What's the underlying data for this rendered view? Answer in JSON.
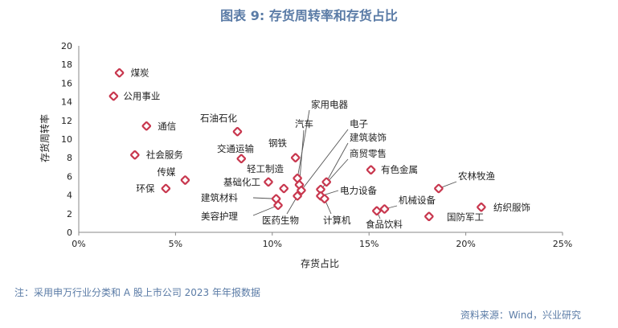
{
  "title": "图表 9:  存货周转率和存货占比",
  "note": "注：采用申万行业分类和 A 股上市公司 2023 年年报数据",
  "source": "资料来源：Wind，兴业研究",
  "chart_data": {
    "type": "scatter",
    "xlabel": "存货占比",
    "ylabel": "存货周转率",
    "xlim": [
      0,
      25
    ],
    "ylim": [
      0,
      20
    ],
    "x_ticks": [
      "0%",
      "5%",
      "10%",
      "15%",
      "20%",
      "25%"
    ],
    "y_ticks": [
      "0",
      "2",
      "4",
      "6",
      "8",
      "10",
      "12",
      "14",
      "16",
      "18",
      "20"
    ],
    "grid": false,
    "points": [
      {
        "label": "煤炭",
        "x": 2.1,
        "y": 17.1
      },
      {
        "label": "公用事业",
        "x": 1.8,
        "y": 14.6
      },
      {
        "label": "通信",
        "x": 3.5,
        "y": 11.4
      },
      {
        "label": "社会服务",
        "x": 2.9,
        "y": 8.3
      },
      {
        "label": "传媒",
        "x": 5.5,
        "y": 5.6
      },
      {
        "label": "环保",
        "x": 4.5,
        "y": 4.7
      },
      {
        "label": "石油石化",
        "x": 8.2,
        "y": 10.8
      },
      {
        "label": "交通运输",
        "x": 8.4,
        "y": 7.9
      },
      {
        "label": "钢铁",
        "x": 11.2,
        "y": 8.0
      },
      {
        "label": "基础化工",
        "x": 9.8,
        "y": 5.4
      },
      {
        "label": "建筑材料",
        "x": 10.2,
        "y": 3.6
      },
      {
        "label": "美容护理",
        "x": 10.3,
        "y": 2.9
      },
      {
        "label": "轻工制造",
        "x": 10.6,
        "y": 4.7
      },
      {
        "label": "医药生物",
        "x": 11.3,
        "y": 3.9
      },
      {
        "label": "家用电器",
        "x": 11.3,
        "y": 5.8
      },
      {
        "label": "汽车",
        "x": 11.4,
        "y": 5.1
      },
      {
        "label": "电子",
        "x": 11.5,
        "y": 4.5
      },
      {
        "label": "建筑装饰",
        "x": 12.8,
        "y": 5.4
      },
      {
        "label": "商贸零售",
        "x": 12.5,
        "y": 4.6
      },
      {
        "label": "电力设备",
        "x": 12.5,
        "y": 3.9
      },
      {
        "label": "计算机",
        "x": 12.7,
        "y": 3.6
      },
      {
        "label": "有色金属",
        "x": 15.1,
        "y": 6.7
      },
      {
        "label": "食品饮料",
        "x": 15.4,
        "y": 2.3
      },
      {
        "label": "机械设备",
        "x": 15.8,
        "y": 2.5
      },
      {
        "label": "农林牧渔",
        "x": 18.6,
        "y": 4.7
      },
      {
        "label": "国防军工",
        "x": 18.1,
        "y": 1.7
      },
      {
        "label": "纺织服饰",
        "x": 20.8,
        "y": 2.7
      }
    ]
  }
}
